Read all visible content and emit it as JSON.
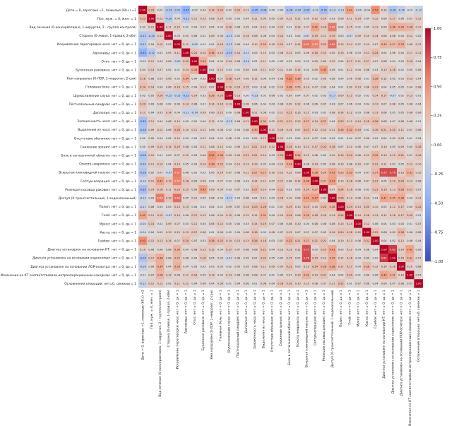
{
  "chart_data": {
    "type": "heatmap",
    "title": "",
    "labels": [
      "Дети = 0, взрослые =1, пожилые (60+) =2",
      "Пол: муж. = 0, жен. = 1",
      "Вид лечения (0-консервативно, 1-хирургия, 2 - группа контроля)",
      "Сторона (0-левая, 1-правая, 2-обе)",
      "Искривление перегородки носа: нет = 0, да = 1",
      "Аденоиды: нет = 0, да = 1",
      "Отит: нет = 0, да = 1",
      "Буллезная раковина: нет = 0, да = 1",
      "Кем направлен (0-ЛОР, 1-невролог, 2-сам)",
      "Головная боль: нет = 0, да = 1",
      "Шумоснижение слуха: нет = 0, да = 1",
      "Постназальный синдром: нет = 0, да = 1",
      "Диплопия: нет = 0, да = 1",
      "Заложенность носа: нет = 0, да = 1",
      "Выделения из носа: нет = 0, да = 1",
      "Отсутствие обоняния: нет = 0, да = 1",
      "Снижение зрения: нет = 0, да = 1",
      "Боль в заглазничной области: нет = 0, да = 1",
      "Осмотр невролога: нет = 0, да = 1",
      "Вскрытая клиновидной пазухи: нет = 0, да = 1",
      "Септум-операция: нет = 0, да = 1",
      "Резекция носовых раковин: нет = 0, да = 1",
      "Доступ (0-транссептальный, 1-эндоназальный)",
      "Полип: нет = 0, да = 1",
      "Гной: нет = 0, да = 1",
      "Мукоз: нет = 0, да = 1",
      "Киста: нет = 0, да = 1",
      "Грибок: нет = 0, да = 1",
      "Диагноз установлен на основании КТ: нет = 0, да = 1",
      "Диагноз установлен на основании эндоскопии: нет = 0, да = 1",
      "Диагноз установлен на основании ЛОР-осмотра: нет = 0, да = 1",
      "Изменения на КТ соответствовали интраоперационным находкам: нет = 0, да = 1",
      "Осложнения операции: нет=0, синехии = 1"
    ],
    "matrix": [
      [
        1.0,
        0.23,
        0.02,
        -0.23,
        -0.21,
        -0.45,
        -0.02,
        0.04,
        0.18,
        0.24,
        0.02,
        0.2,
        0.11,
        -0.35,
        -0.28,
        0.0,
        0.0,
        -0.28,
        -0.2,
        -0.28,
        -0.1,
        -0.35,
        -0.13,
        -0.11,
        0.42,
        -0.04,
        -0.04,
        0.53,
        0.1,
        -0.28,
        -0.16,
        -0.01,
        -0.12
      ],
      [
        0.23,
        1.0,
        0.12,
        -0.2,
        0.04,
        -0.22,
        0.11,
        0.13,
        0.08,
        0.14,
        0.05,
        0.03,
        0.04,
        0.11,
        0.09,
        0.05,
        0.09,
        0.12,
        0.11,
        0.05,
        0.12,
        0.14,
        0.03,
        0.06,
        0.11,
        0.14,
        0.04,
        0.12,
        0.06,
        0.17,
        0.06,
        0.07,
        0.12
      ],
      [
        0.02,
        0.12,
        1.0,
        0.11,
        0.15,
        0.02,
        0.04,
        0.07,
        0.05,
        0.04,
        0.2,
        0.06,
        0.05,
        0.04,
        0.12,
        0.04,
        0.15,
        0.01,
        0.14,
        0.07,
        0.42,
        0.18,
        0.6,
        0.04,
        0.15,
        0.02,
        0.05,
        0.13,
        0.06,
        0.36,
        0.34,
        0.28,
        0.12
      ],
      [
        -0.23,
        -0.2,
        0.11,
        1.0,
        0.03,
        0.05,
        0.06,
        0.02,
        0.09,
        0.06,
        -0.15,
        0.02,
        0.14,
        0.08,
        0.06,
        0.04,
        0.14,
        0.03,
        0.04,
        -0.07,
        0.19,
        0.11,
        0.19,
        0.03,
        -0.07,
        0.09,
        0.1,
        0.14,
        0.08,
        0.08,
        0.04,
        0.12,
        0.02
      ],
      [
        -0.21,
        0.04,
        0.15,
        0.03,
        1.0,
        0.11,
        -0.09,
        0.01,
        0.02,
        0.16,
        -0.15,
        0.06,
        0.04,
        0.1,
        0.26,
        0.1,
        0.19,
        0.07,
        0.14,
        0.61,
        0.57,
        0.23,
        0.64,
        0.13,
        0.14,
        0.07,
        0.1,
        0.07,
        0.3,
        0.27,
        0.33,
        0.08,
        0.11
      ],
      [
        -0.45,
        -0.22,
        0.02,
        0.05,
        0.11,
        1.0,
        0.2,
        0.14,
        0.34,
        0.15,
        -0.25,
        0.14,
        -0.11,
        0.03,
        0.1,
        0.03,
        0.08,
        0.12,
        0.05,
        0.06,
        0.18,
        0.15,
        0.05,
        0.13,
        0.06,
        0.03,
        0.13,
        0.24,
        0.04,
        0.06,
        0.04,
        0.11,
        0.11
      ],
      [
        -0.02,
        0.11,
        0.04,
        0.06,
        -0.09,
        0.2,
        1.0,
        0.34,
        0.04,
        0.04,
        0.14,
        0.08,
        -0.14,
        0.02,
        0.11,
        0.0,
        0.03,
        0.03,
        0.03,
        0.02,
        0.09,
        0.09,
        0.1,
        0.04,
        0.17,
        0.11,
        0.17,
        0.07,
        0.08,
        0.04,
        0.03,
        0.16,
        0.04
      ],
      [
        0.04,
        0.13,
        0.07,
        0.02,
        0.01,
        0.14,
        0.34,
        1.0,
        0.02,
        0.13,
        0.03,
        0.01,
        0.09,
        0.04,
        0.11,
        0.07,
        0.11,
        0.06,
        0.14,
        0.02,
        0.09,
        0.45,
        0.05,
        0.01,
        0.12,
        0.04,
        0.08,
        0.03,
        0.13,
        0.18,
        0.02,
        0.05,
        0.06
      ],
      [
        0.18,
        0.08,
        0.05,
        0.09,
        0.02,
        0.34,
        0.04,
        0.02,
        1.0,
        0.07,
        0.28,
        0.14,
        0.06,
        0.12,
        0.06,
        0.04,
        0.08,
        0.52,
        0.38,
        0.05,
        0.02,
        0.09,
        0.06,
        0.04,
        0.06,
        0.08,
        0.01,
        0.28,
        0.12,
        0.05,
        0.03,
        0.13,
        0.04
      ],
      [
        0.24,
        0.14,
        0.04,
        0.06,
        0.16,
        0.15,
        0.04,
        0.13,
        0.07,
        1.0,
        0.2,
        0.16,
        0.15,
        0.03,
        0.08,
        0.02,
        0.13,
        0.38,
        0.25,
        0.14,
        0.07,
        0.09,
        0.04,
        0.01,
        0.09,
        0.13,
        0.08,
        0.23,
        0.04,
        0.05,
        0.05,
        0.04,
        0.08
      ],
      [
        0.02,
        0.05,
        0.2,
        -0.15,
        -0.15,
        -0.25,
        0.14,
        0.03,
        0.28,
        0.2,
        1.0,
        0.13,
        0.0,
        -0.13,
        0.02,
        0.06,
        0.02,
        0.09,
        0.04,
        0.07,
        0.02,
        0.03,
        -0.17,
        0.09,
        0.15,
        0.05,
        0.02,
        0.14,
        0.17,
        -0.07,
        0.02,
        0.13,
        0.01
      ],
      [
        0.2,
        0.03,
        0.06,
        0.02,
        0.06,
        0.14,
        0.08,
        0.01,
        0.14,
        0.16,
        0.13,
        1.0,
        0.08,
        0.06,
        0.04,
        0.03,
        0.06,
        0.09,
        0.12,
        0.06,
        0.06,
        0.07,
        0.03,
        0.07,
        0.06,
        0.04,
        0.04,
        0.13,
        0.07,
        0.08,
        0.05,
        0.06,
        0.04
      ],
      [
        0.11,
        0.04,
        0.05,
        0.14,
        0.04,
        -0.11,
        -0.14,
        0.09,
        0.06,
        0.15,
        0.0,
        0.08,
        1.0,
        0.11,
        0.08,
        0.02,
        0.11,
        0.21,
        0.13,
        0.11,
        0.03,
        0.02,
        0.08,
        0.14,
        0.12,
        0.03,
        0.08,
        0.13,
        0.08,
        0.05,
        0.05,
        0.08,
        0.06
      ],
      [
        -0.35,
        0.11,
        0.04,
        0.08,
        0.1,
        0.03,
        0.02,
        0.04,
        0.12,
        0.03,
        -0.13,
        0.06,
        0.11,
        1.0,
        0.3,
        0.05,
        0.21,
        0.21,
        0.13,
        0.27,
        0.14,
        0.27,
        0.04,
        0.23,
        0.12,
        0.14,
        0.18,
        0.26,
        0.08,
        0.07,
        0.08,
        0.08,
        0.01
      ],
      [
        -0.28,
        0.09,
        0.12,
        0.06,
        0.26,
        0.1,
        0.11,
        0.11,
        0.06,
        0.08,
        0.02,
        0.04,
        0.08,
        0.3,
        1.0,
        0.11,
        0.16,
        0.14,
        0.07,
        0.27,
        0.12,
        0.14,
        0.11,
        0.26,
        0.32,
        0.19,
        0.02,
        0.18,
        0.21,
        0.2,
        0.11,
        0.07,
        0.08
      ],
      [
        0.0,
        0.05,
        0.04,
        0.04,
        0.1,
        0.03,
        0.0,
        0.07,
        0.04,
        0.02,
        0.06,
        0.03,
        0.02,
        0.05,
        0.11,
        1.0,
        0.12,
        0.03,
        0.04,
        0.1,
        0.07,
        0.04,
        0.03,
        0.01,
        0.04,
        0.07,
        0.06,
        0.03,
        0.04,
        0.05,
        0.09,
        0.01,
        0.04
      ],
      [
        0.0,
        0.09,
        0.15,
        0.14,
        0.19,
        0.08,
        0.03,
        0.11,
        0.08,
        0.13,
        0.02,
        0.06,
        0.11,
        0.21,
        0.16,
        0.12,
        1.0,
        0.24,
        0.1,
        0.13,
        0.17,
        0.23,
        0.18,
        0.07,
        0.1,
        0.06,
        0.07,
        0.07,
        0.1,
        0.05,
        0.09,
        0.05,
        0.18
      ],
      [
        -0.28,
        0.12,
        0.01,
        0.03,
        0.07,
        0.12,
        0.03,
        0.06,
        0.52,
        0.38,
        0.09,
        0.09,
        0.21,
        0.21,
        0.14,
        0.03,
        0.24,
        1.0,
        0.34,
        0.12,
        0.08,
        0.03,
        0.1,
        0.19,
        0.24,
        0.08,
        0.12,
        0.32,
        0.13,
        0.15,
        0.21,
        0.07,
        0.16
      ],
      [
        -0.2,
        0.11,
        0.14,
        0.04,
        0.14,
        0.05,
        0.03,
        0.14,
        0.38,
        0.25,
        0.04,
        0.12,
        0.13,
        0.13,
        0.07,
        0.04,
        0.1,
        0.34,
        1.0,
        0.06,
        0.14,
        0.05,
        0.08,
        0.1,
        0.08,
        0.1,
        0.07,
        0.21,
        0.11,
        0.07,
        0.05,
        0.13,
        0.1
      ],
      [
        -0.28,
        0.05,
        0.07,
        -0.07,
        0.61,
        0.06,
        0.02,
        0.02,
        0.05,
        0.14,
        0.07,
        0.06,
        0.11,
        0.27,
        0.27,
        0.1,
        0.13,
        0.12,
        0.06,
        1.0,
        0.38,
        0.24,
        0.41,
        0.23,
        0.33,
        0.04,
        0.07,
        0.27,
        0.75,
        0.76,
        0.13,
        0.31,
        0.1
      ],
      [
        -0.1,
        0.12,
        0.42,
        0.19,
        0.57,
        0.18,
        0.09,
        0.09,
        0.02,
        0.07,
        0.02,
        0.06,
        0.03,
        0.14,
        0.12,
        0.07,
        0.17,
        0.08,
        0.14,
        0.38,
        1.0,
        0.27,
        0.47,
        0.1,
        0.18,
        0.08,
        0.07,
        0.21,
        0.05,
        0.19,
        0.24,
        0.13,
        0.08
      ],
      [
        -0.35,
        0.14,
        0.18,
        0.11,
        0.23,
        0.15,
        0.09,
        0.45,
        0.09,
        0.09,
        0.03,
        0.07,
        0.02,
        0.27,
        0.14,
        0.04,
        0.23,
        0.03,
        0.05,
        0.24,
        0.27,
        1.0,
        0.07,
        0.24,
        0.16,
        0.06,
        0.05,
        0.21,
        0.19,
        0.13,
        0.28,
        0.21,
        0.07
      ],
      [
        -0.13,
        0.03,
        0.6,
        0.19,
        0.64,
        0.05,
        0.1,
        0.05,
        0.06,
        0.04,
        -0.17,
        0.03,
        0.08,
        0.04,
        0.11,
        0.03,
        0.18,
        0.1,
        0.08,
        0.41,
        0.47,
        0.07,
        1.0,
        0.26,
        0.13,
        0.08,
        0.14,
        0.04,
        0.41,
        0.35,
        0.38,
        0.04,
        0.11
      ],
      [
        -0.11,
        0.06,
        0.04,
        0.03,
        0.13,
        0.13,
        0.04,
        0.01,
        0.04,
        0.01,
        0.09,
        0.07,
        0.14,
        0.23,
        0.26,
        0.01,
        0.07,
        0.19,
        0.1,
        0.23,
        0.1,
        0.24,
        0.26,
        1.0,
        0.24,
        0.13,
        0.2,
        0.1,
        0.05,
        0.12,
        0.17,
        0.04,
        0.22
      ],
      [
        0.42,
        0.11,
        0.15,
        -0.07,
        0.14,
        0.06,
        0.17,
        0.12,
        0.06,
        0.09,
        0.15,
        0.06,
        0.12,
        0.12,
        0.32,
        0.04,
        0.1,
        0.24,
        0.08,
        0.33,
        0.18,
        0.16,
        0.13,
        0.24,
        1.0,
        0.14,
        0.18,
        0.13,
        0.12,
        0.16,
        0.17,
        0.2,
        0.01
      ],
      [
        -0.04,
        0.14,
        0.02,
        0.09,
        0.07,
        0.03,
        0.11,
        0.04,
        0.08,
        0.13,
        0.05,
        0.04,
        0.03,
        0.14,
        0.19,
        0.07,
        0.06,
        0.08,
        0.1,
        0.04,
        0.08,
        0.06,
        0.08,
        0.13,
        0.14,
        1.0,
        0.12,
        0.06,
        0.04,
        0.03,
        0.04,
        0.01,
        0.07
      ],
      [
        -0.04,
        0.04,
        0.05,
        0.1,
        0.1,
        0.13,
        0.17,
        0.08,
        0.01,
        0.08,
        0.02,
        0.04,
        0.08,
        0.18,
        0.02,
        0.06,
        0.07,
        0.12,
        0.07,
        0.07,
        0.07,
        0.05,
        0.14,
        0.2,
        0.18,
        0.12,
        1.0,
        0.22,
        0.08,
        0.09,
        0.28,
        0.06,
        0.08
      ],
      [
        0.53,
        0.12,
        0.13,
        0.14,
        0.07,
        0.24,
        0.07,
        0.03,
        0.28,
        0.23,
        0.14,
        0.13,
        0.13,
        0.26,
        0.18,
        0.03,
        0.07,
        0.32,
        0.21,
        0.27,
        0.21,
        0.21,
        0.04,
        0.1,
        0.13,
        0.06,
        0.22,
        1.0,
        0.04,
        0.02,
        0.12,
        0.06,
        0.04
      ],
      [
        0.1,
        0.06,
        0.06,
        0.08,
        0.3,
        0.04,
        0.08,
        0.13,
        0.12,
        0.04,
        0.17,
        0.07,
        0.08,
        0.08,
        0.21,
        0.04,
        0.1,
        0.13,
        0.11,
        0.75,
        0.05,
        0.19,
        0.41,
        0.05,
        0.12,
        0.04,
        0.08,
        0.04,
        1.0,
        0.82,
        0.14,
        0.42,
        0.06
      ],
      [
        -0.28,
        0.17,
        0.36,
        0.08,
        0.27,
        0.06,
        0.04,
        0.18,
        0.05,
        0.05,
        -0.07,
        0.08,
        0.05,
        0.07,
        0.2,
        0.05,
        0.05,
        0.15,
        0.07,
        0.76,
        0.19,
        0.13,
        0.35,
        0.12,
        0.16,
        0.03,
        0.09,
        0.02,
        0.82,
        1.0,
        0.16,
        0.31,
        0.07
      ],
      [
        -0.16,
        0.06,
        0.34,
        0.04,
        0.33,
        0.04,
        0.03,
        0.02,
        0.03,
        0.05,
        0.02,
        0.05,
        0.05,
        0.08,
        0.11,
        0.09,
        0.09,
        0.21,
        0.05,
        0.13,
        0.24,
        0.28,
        0.38,
        0.17,
        0.17,
        0.04,
        0.28,
        0.12,
        0.14,
        0.16,
        1.0,
        0.1,
        0.08
      ],
      [
        -0.01,
        0.07,
        0.28,
        0.12,
        0.08,
        0.11,
        0.16,
        0.05,
        0.13,
        0.04,
        0.13,
        0.06,
        0.08,
        0.08,
        0.07,
        0.01,
        0.05,
        0.07,
        0.13,
        0.31,
        0.13,
        0.21,
        0.04,
        0.04,
        0.2,
        0.01,
        0.06,
        0.06,
        0.42,
        0.31,
        0.1,
        1.0,
        0.07
      ],
      [
        -0.12,
        0.12,
        0.12,
        0.02,
        0.11,
        0.11,
        0.04,
        0.06,
        0.04,
        0.08,
        0.01,
        0.04,
        0.06,
        0.01,
        0.08,
        0.04,
        0.18,
        0.16,
        0.1,
        0.1,
        0.08,
        0.07,
        0.11,
        0.22,
        0.01,
        0.07,
        0.08,
        0.04,
        0.06,
        0.07,
        0.08,
        0.07,
        1.0
      ]
    ],
    "value_range": [
      -1,
      1
    ],
    "colormap": "coolwarm",
    "colorbar": {
      "ticks": [
        "1.00",
        "0.75",
        "0.50",
        "0.25",
        "0.00",
        "-0.25",
        "-0.50",
        "-0.75",
        "-1.00"
      ],
      "placement": "right"
    },
    "grid": false
  }
}
